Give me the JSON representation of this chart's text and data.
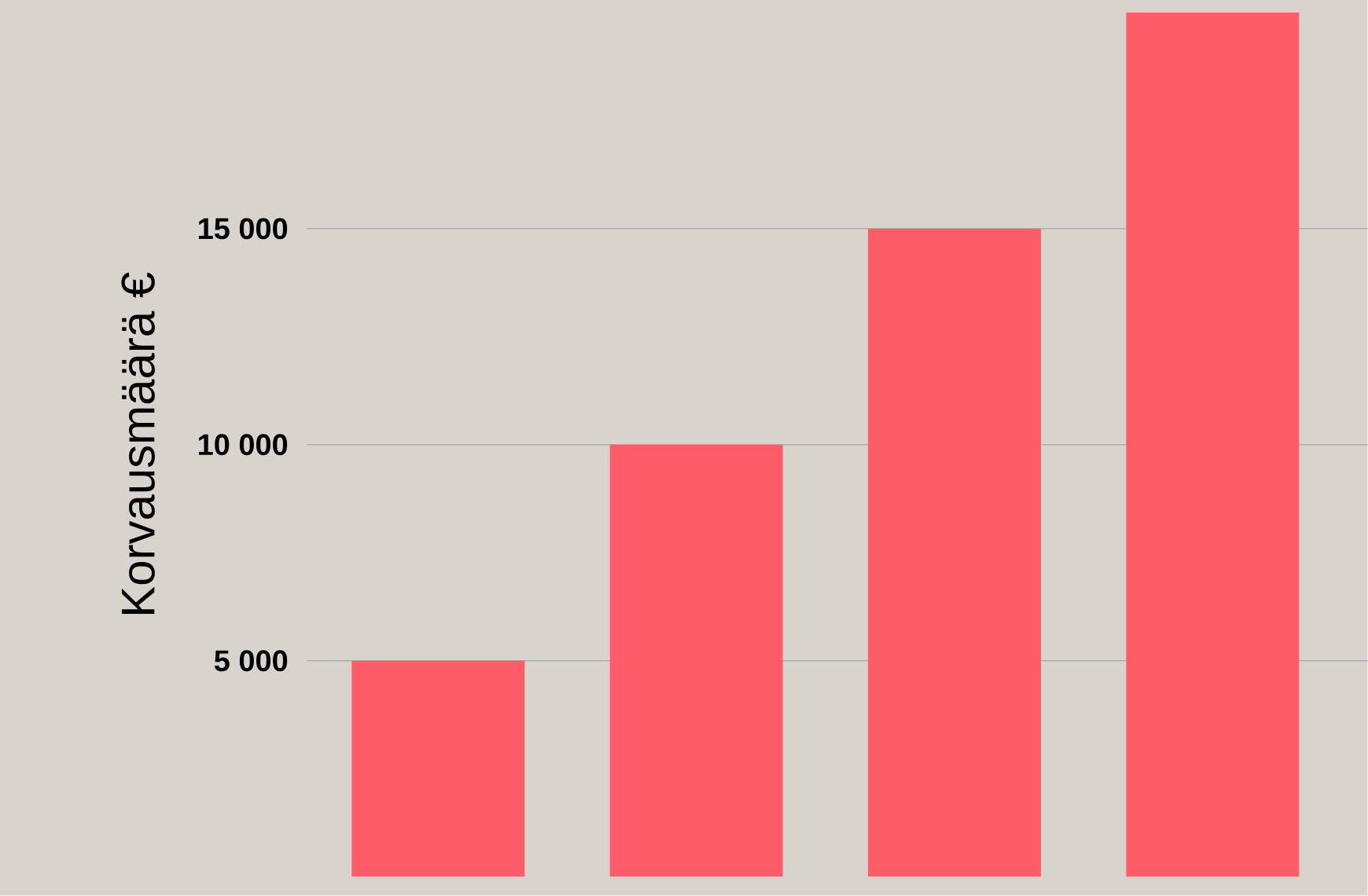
{
  "chart_data": {
    "type": "bar",
    "ylabel": "Korvausmäärä €",
    "categories": [
      null,
      null,
      null,
      null
    ],
    "values": [
      5000,
      10000,
      15000,
      20000
    ],
    "color": "#ff5c69",
    "ylim": [
      0,
      20000
    ],
    "yticks": [
      {
        "value": 5000,
        "label": "5 000"
      },
      {
        "value": 10000,
        "label": "10 000"
      },
      {
        "value": 15000,
        "label": "15 000"
      }
    ],
    "grid": "y",
    "tick_labels": "y"
  }
}
